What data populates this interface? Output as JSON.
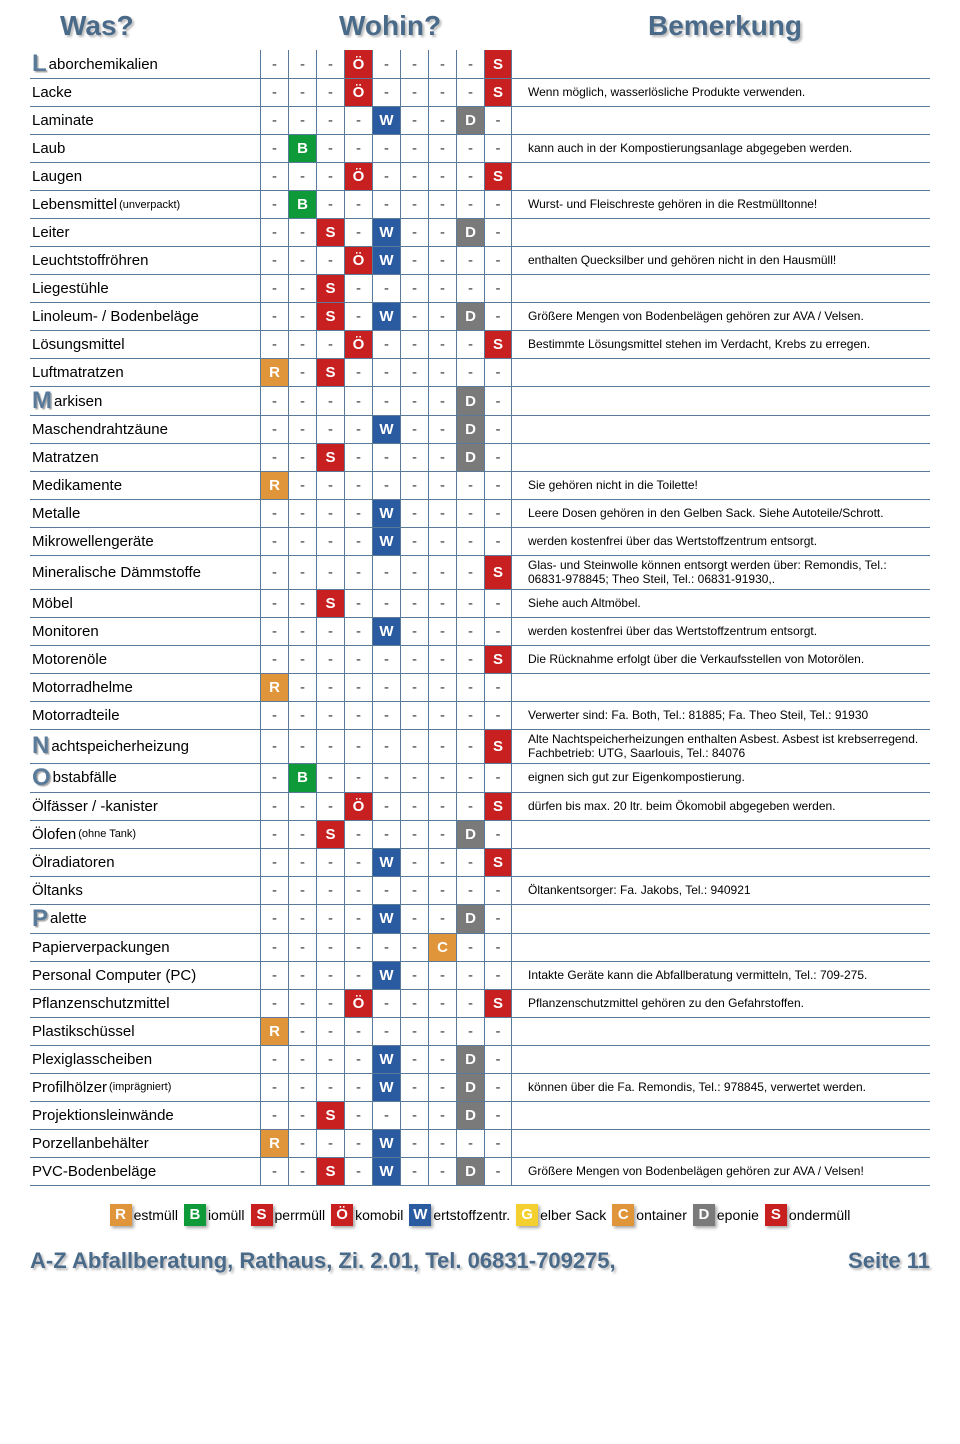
{
  "headers": {
    "was": "Was?",
    "wohin": "Wohin?",
    "bemerkung": "Bemerkung"
  },
  "colors": {
    "R": "#e0953a",
    "B": "#0f9a3a",
    "S_sperr": "#c82020",
    "Ö": "#c82020",
    "W": "#2a5aa0",
    "G": "#f3d030",
    "C": "#e0953a",
    "D": "#7a7a7a",
    "S_sonder": "#c82020",
    "dash": "#333333",
    "border": "#5a7a9a",
    "header_text": "#4a6a8a"
  },
  "columns": [
    "R",
    "B",
    "S",
    "Ö",
    "W",
    "G",
    "C",
    "D",
    "S2"
  ],
  "column_badge_letter": {
    "R": "R",
    "B": "B",
    "S": "S",
    "Ö": "Ö",
    "W": "W",
    "G": "G",
    "C": "C",
    "D": "D",
    "S2": "S"
  },
  "column_color_key": {
    "R": "R",
    "B": "B",
    "S": "S_sperr",
    "Ö": "Ö",
    "W": "W",
    "G": "G",
    "C": "C",
    "D": "D",
    "S2": "S_sonder"
  },
  "rows": [
    {
      "name": "Laborchemikalien",
      "big": "L",
      "rest": "aborchemikalien",
      "cells": [
        "-",
        "-",
        "-",
        "Ö",
        "-",
        "-",
        "-",
        "-",
        "S2"
      ],
      "remark": ""
    },
    {
      "name": "Lacke",
      "cells": [
        "-",
        "-",
        "-",
        "Ö",
        "-",
        "-",
        "-",
        "-",
        "S2"
      ],
      "remark": "Wenn möglich, wasserlösliche Produkte verwenden."
    },
    {
      "name": "Laminate",
      "cells": [
        "-",
        "-",
        "-",
        "-",
        "W",
        "-",
        "-",
        "D",
        "-"
      ],
      "remark": ""
    },
    {
      "name": "Laub",
      "cells": [
        "-",
        "B",
        "-",
        "-",
        "-",
        "-",
        "-",
        "-",
        "-"
      ],
      "remark": "kann auch in der Kompostierungsanlage abgegeben werden."
    },
    {
      "name": "Laugen",
      "cells": [
        "-",
        "-",
        "-",
        "Ö",
        "-",
        "-",
        "-",
        "-",
        "S2"
      ],
      "remark": ""
    },
    {
      "name": "Lebensmittel",
      "suffix": "(unverpackt)",
      "cells": [
        "-",
        "B",
        "-",
        "-",
        "-",
        "-",
        "-",
        "-",
        "-"
      ],
      "remark": "Wurst- und Fleischreste gehören in die Restmülltonne!"
    },
    {
      "name": "Leiter",
      "cells": [
        "-",
        "-",
        "S",
        "-",
        "W",
        "-",
        "-",
        "D",
        "-"
      ],
      "remark": ""
    },
    {
      "name": "Leuchtstoffröhren",
      "cells": [
        "-",
        "-",
        "-",
        "Ö",
        "W",
        "-",
        "-",
        "-",
        "-"
      ],
      "remark": "enthalten Quecksilber und gehören nicht in den Hausmüll!"
    },
    {
      "name": "Liegestühle",
      "cells": [
        "-",
        "-",
        "S",
        "-",
        "-",
        "-",
        "-",
        "-",
        "-"
      ],
      "remark": ""
    },
    {
      "name": "Linoleum- / Bodenbeläge",
      "cells": [
        "-",
        "-",
        "S",
        "-",
        "W",
        "-",
        "-",
        "D",
        "-"
      ],
      "remark": "Größere Mengen von Bodenbelägen gehören zur AVA / Velsen."
    },
    {
      "name": "Lösungsmittel",
      "cells": [
        "-",
        "-",
        "-",
        "Ö",
        "-",
        "-",
        "-",
        "-",
        "S2"
      ],
      "remark": "Bestimmte Lösungsmittel stehen im Verdacht, Krebs zu erregen."
    },
    {
      "name": "Luftmatratzen",
      "cells": [
        "R",
        "-",
        "S",
        "-",
        "-",
        "-",
        "-",
        "-",
        "-"
      ],
      "remark": ""
    },
    {
      "name": "Markisen",
      "big": "M",
      "rest": "arkisen",
      "cells": [
        "-",
        "-",
        "-",
        "-",
        "-",
        "-",
        "-",
        "D",
        "-"
      ],
      "remark": ""
    },
    {
      "name": "Maschendrahtzäune",
      "cells": [
        "-",
        "-",
        "-",
        "-",
        "W",
        "-",
        "-",
        "D",
        "-"
      ],
      "remark": ""
    },
    {
      "name": "Matratzen",
      "cells": [
        "-",
        "-",
        "S",
        "-",
        "-",
        "-",
        "-",
        "D",
        "-"
      ],
      "remark": ""
    },
    {
      "name": "Medikamente",
      "cells": [
        "R",
        "-",
        "-",
        "-",
        "-",
        "-",
        "-",
        "-",
        "-"
      ],
      "remark": "Sie gehören nicht in die Toilette!"
    },
    {
      "name": "Metalle",
      "cells": [
        "-",
        "-",
        "-",
        "-",
        "W",
        "-",
        "-",
        "-",
        "-"
      ],
      "remark": "Leere Dosen gehören in den Gelben Sack. Siehe Autoteile/Schrott."
    },
    {
      "name": "Mikrowellengeräte",
      "cells": [
        "-",
        "-",
        "-",
        "-",
        "W",
        "-",
        "-",
        "-",
        "-"
      ],
      "remark": "werden kostenfrei über das Wertstoffzentrum entsorgt."
    },
    {
      "name": "Mineralische Dämmstoffe",
      "cells": [
        "-",
        "-",
        "-",
        "-",
        "-",
        "-",
        "-",
        "-",
        "S2"
      ],
      "remark": "Glas- und Steinwolle können entsorgt werden über: Remondis, Tel.: 06831-978845; Theo Steil, Tel.: 06831-91930,."
    },
    {
      "name": "Möbel",
      "cells": [
        "-",
        "-",
        "S",
        "-",
        "-",
        "-",
        "-",
        "-",
        "-"
      ],
      "remark": "Siehe auch Altmöbel."
    },
    {
      "name": "Monitoren",
      "cells": [
        "-",
        "-",
        "-",
        "-",
        "W",
        "-",
        "-",
        "-",
        "-"
      ],
      "remark": "werden kostenfrei über das Wertstoffzentrum entsorgt."
    },
    {
      "name": "Motorenöle",
      "cells": [
        "-",
        "-",
        "-",
        "-",
        "-",
        "-",
        "-",
        "-",
        "S2"
      ],
      "remark": "Die Rücknahme erfolgt über die Verkaufsstellen von Motorölen."
    },
    {
      "name": "Motorradhelme",
      "cells": [
        "R",
        "-",
        "-",
        "-",
        "-",
        "-",
        "-",
        "-",
        "-"
      ],
      "remark": ""
    },
    {
      "name": "Motorradteile",
      "cells": [
        "-",
        "-",
        "-",
        "-",
        "-",
        "-",
        "-",
        "-",
        "-"
      ],
      "remark": "Verwerter sind: Fa. Both, Tel.: 81885; Fa. Theo Steil, Tel.: 91930"
    },
    {
      "name": "Nachtspeicherheizung",
      "big": "N",
      "rest": "achtspeicherheizung",
      "cells": [
        "-",
        "-",
        "-",
        "-",
        "-",
        "-",
        "-",
        "-",
        "S2"
      ],
      "remark": "Alte Nachtspeicherheizungen enthalten Asbest. Asbest ist krebserregend. Fachbetrieb: UTG, Saarlouis, Tel.: 84076"
    },
    {
      "name": "Obstabfälle",
      "big": "O",
      "rest": "bstabfälle",
      "cells": [
        "-",
        "B",
        "-",
        "-",
        "-",
        "-",
        "-",
        "-",
        "-"
      ],
      "remark": "eignen sich gut zur Eigenkompostierung."
    },
    {
      "name": "Ölfässer / -kanister",
      "cells": [
        "-",
        "-",
        "-",
        "Ö",
        "-",
        "-",
        "-",
        "-",
        "S2"
      ],
      "remark": "dürfen bis max. 20 ltr. beim Ökomobil abgegeben werden."
    },
    {
      "name": "Ölofen",
      "suffix": "(ohne Tank)",
      "cells": [
        "-",
        "-",
        "S",
        "-",
        "-",
        "-",
        "-",
        "D",
        "-"
      ],
      "remark": ""
    },
    {
      "name": "Ölradiatoren",
      "cells": [
        "-",
        "-",
        "-",
        "-",
        "W",
        "-",
        "-",
        "-",
        "S2"
      ],
      "remark": ""
    },
    {
      "name": "Öltanks",
      "cells": [
        "-",
        "-",
        "-",
        "-",
        "-",
        "-",
        "-",
        "-",
        "-"
      ],
      "remark": "Öltankentsorger: Fa. Jakobs, Tel.: 940921"
    },
    {
      "name": "Palette",
      "big": "P",
      "rest": "alette",
      "cells": [
        "-",
        "-",
        "-",
        "-",
        "W",
        "-",
        "-",
        "D",
        "-"
      ],
      "remark": ""
    },
    {
      "name": "Papierverpackungen",
      "cells": [
        "-",
        "-",
        "-",
        "-",
        "-",
        "-",
        "C",
        "-",
        "-"
      ],
      "remark": ""
    },
    {
      "name": "Personal Computer (PC)",
      "cells": [
        "-",
        "-",
        "-",
        "-",
        "W",
        "-",
        "-",
        "-",
        "-"
      ],
      "remark": "Intakte Geräte kann die Abfallberatung vermitteln, Tel.: 709-275."
    },
    {
      "name": "Pflanzenschutzmittel",
      "cells": [
        "-",
        "-",
        "-",
        "Ö",
        "-",
        "-",
        "-",
        "-",
        "S2"
      ],
      "remark": "Pflanzenschutzmittel gehören zu den Gefahrstoffen."
    },
    {
      "name": "Plastikschüssel",
      "cells": [
        "R",
        "-",
        "-",
        "-",
        "-",
        "-",
        "-",
        "-",
        "-"
      ],
      "remark": ""
    },
    {
      "name": "Plexiglasscheiben",
      "cells": [
        "-",
        "-",
        "-",
        "-",
        "W",
        "-",
        "-",
        "D",
        "-"
      ],
      "remark": ""
    },
    {
      "name": "Profilhölzer",
      "suffix": "(imprägniert)",
      "cells": [
        "-",
        "-",
        "-",
        "-",
        "W",
        "-",
        "-",
        "D",
        "-"
      ],
      "remark": "können über die Fa. Remondis, Tel.: 978845, verwertet werden."
    },
    {
      "name": "Projektionsleinwände",
      "cells": [
        "-",
        "-",
        "S",
        "-",
        "-",
        "-",
        "-",
        "D",
        "-"
      ],
      "remark": ""
    },
    {
      "name": "Porzellanbehälter",
      "cells": [
        "R",
        "-",
        "-",
        "-",
        "W",
        "-",
        "-",
        "-",
        "-"
      ],
      "remark": ""
    },
    {
      "name": "PVC-Bodenbeläge",
      "cells": [
        "-",
        "-",
        "S",
        "-",
        "W",
        "-",
        "-",
        "D",
        "-"
      ],
      "remark": "Größere Mengen von Bodenbelägen gehören zur AVA / Velsen!"
    }
  ],
  "legend": [
    {
      "key": "R",
      "label": "estmüll"
    },
    {
      "key": "B",
      "label": "iomüll"
    },
    {
      "key": "S",
      "label": "perrmüll",
      "color_key": "S_sperr"
    },
    {
      "key": "Ö",
      "label": "komobil"
    },
    {
      "key": "W",
      "label": "ertstoffzentr."
    },
    {
      "key": "G",
      "label": "elber Sack"
    },
    {
      "key": "C",
      "label": "ontainer"
    },
    {
      "key": "D",
      "label": "eponie"
    },
    {
      "key": "S",
      "label": "ondermüll",
      "color_key": "S_sonder"
    }
  ],
  "footer": {
    "left": "A-Z   Abfallberatung, Rathaus, Zi. 2.01, Tel. 06831-709275,",
    "right": "Seite 11"
  }
}
